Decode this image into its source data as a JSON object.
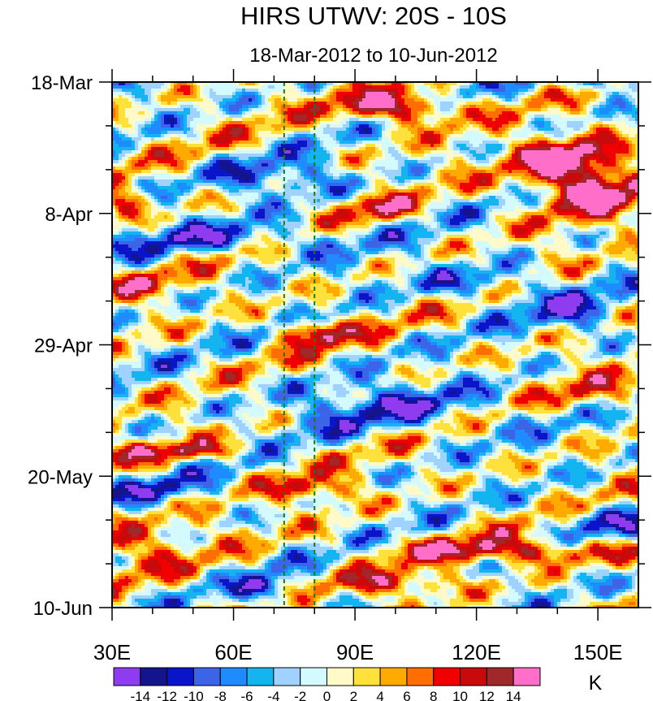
{
  "chart_data": {
    "type": "heatmap",
    "title": "HIRS UTWV: 20S - 10S",
    "subtitle": "18-Mar-2012 to 10-Jun-2012",
    "x_axis": {
      "range": [
        "30E",
        "160E"
      ],
      "ticks": [
        {
          "value": 30,
          "label": "30E"
        },
        {
          "value": 60,
          "label": "60E"
        },
        {
          "value": 90,
          "label": "90E"
        },
        {
          "value": 120,
          "label": "120E"
        },
        {
          "value": 150,
          "label": "150E"
        }
      ]
    },
    "y_axis": {
      "range": [
        "18-Mar-2012",
        "10-Jun-2012"
      ],
      "ticks": [
        {
          "value": "2012-03-18",
          "label": "18-Mar"
        },
        {
          "value": "2012-04-08",
          "label": "8-Apr"
        },
        {
          "value": "2012-04-29",
          "label": "29-Apr"
        },
        {
          "value": "2012-05-20",
          "label": "20-May"
        },
        {
          "value": "2012-06-10",
          "label": "10-Jun"
        }
      ]
    },
    "reference_lines_longitude": [
      72.5,
      80
    ],
    "colorbar": {
      "unit": "K",
      "levels": [
        -14,
        -12,
        -10,
        -8,
        -6,
        -4,
        -2,
        0,
        2,
        4,
        6,
        8,
        10,
        12,
        14
      ],
      "level_labels": [
        "-14",
        "-12",
        "-10",
        "-8",
        "-6",
        "-4",
        "-2",
        "0",
        "2",
        "4",
        "6",
        "8",
        "10",
        "12",
        "14"
      ],
      "colors": [
        "#8f3cf0",
        "#14148c",
        "#0a14c8",
        "#3c64e6",
        "#1e8cff",
        "#14b4f0",
        "#a0d2ff",
        "#d2faff",
        "#fffac8",
        "#ffe13c",
        "#ffaa00",
        "#ff6e00",
        "#f00000",
        "#c80a0a",
        "#a02828",
        "#ff6ec8"
      ]
    },
    "features": [
      {
        "lon": 101,
        "date": "2012-03-22",
        "amp": 17,
        "rlon": 14,
        "rdays": 2.5,
        "drift_deg_per_day": 0
      },
      {
        "lon": 147,
        "date": "2012-04-03",
        "amp": 17,
        "rlon": 15,
        "rdays": 5,
        "drift_deg_per_day": 0
      },
      {
        "lon": 142,
        "date": "2012-03-30",
        "amp": 10,
        "rlon": 12,
        "rdays": 3,
        "drift_deg_per_day": 0
      },
      {
        "lon": 153,
        "date": "2012-03-18",
        "amp": -9,
        "rlon": 14,
        "rdays": 1.5,
        "drift_deg_per_day": 0
      },
      {
        "lon": 33,
        "date": "2012-04-06",
        "amp": 11,
        "rlon": 5,
        "rdays": 2,
        "drift_deg_per_day": 0
      },
      {
        "lon": 96,
        "date": "2012-04-07",
        "amp": 9,
        "rlon": 8,
        "rdays": 2,
        "drift_deg_per_day": 0
      },
      {
        "lon": 80,
        "date": "2012-04-27",
        "amp": 13,
        "rlon": 8,
        "rdays": 2,
        "drift_deg_per_day": 0
      },
      {
        "lon": 80,
        "date": "2012-05-22",
        "amp": 10,
        "rlon": 10,
        "rdays": 2,
        "drift_deg_per_day": 0
      },
      {
        "lon": 130,
        "date": "2012-06-01",
        "amp": 12,
        "rlon": 30,
        "rdays": 2,
        "drift_deg_per_day": 2.2
      },
      {
        "lon": 100,
        "date": "2012-06-06",
        "amp": 9,
        "rlon": 15,
        "rdays": 2,
        "drift_deg_per_day": 0
      },
      {
        "lon": 60,
        "date": "2012-04-12",
        "amp": -9,
        "rlon": 30,
        "rdays": 2.5,
        "drift_deg_per_day": 0
      },
      {
        "lon": 70,
        "date": "2012-04-02",
        "amp": -8,
        "rlon": 18,
        "rdays": 3,
        "drift_deg_per_day": 0
      },
      {
        "lon": 100,
        "date": "2012-05-09",
        "amp": -9,
        "rlon": 30,
        "rdays": 4,
        "drift_deg_per_day": 0
      },
      {
        "lon": 145,
        "date": "2012-04-24",
        "amp": -9,
        "rlon": 12,
        "rdays": 3,
        "drift_deg_per_day": 0
      },
      {
        "lon": 120,
        "date": "2012-04-19",
        "amp": -8,
        "rlon": 18,
        "rdays": 3,
        "drift_deg_per_day": 0
      },
      {
        "lon": 68,
        "date": "2012-06-07",
        "amp": -11,
        "rlon": 6,
        "rdays": 2,
        "drift_deg_per_day": 0
      },
      {
        "lon": 40,
        "date": "2012-05-22",
        "amp": -7,
        "rlon": 15,
        "rdays": 2,
        "drift_deg_per_day": 0
      },
      {
        "lon": 150,
        "date": "2012-05-27",
        "amp": -9,
        "rlon": 12,
        "rdays": 2.5,
        "drift_deg_per_day": 0
      },
      {
        "lon": 35,
        "date": "2012-05-31",
        "amp": 7,
        "rlon": 15,
        "rdays": 4,
        "drift_deg_per_day": 0
      },
      {
        "lon": 45,
        "date": "2012-05-16",
        "amp": 9,
        "rlon": 20,
        "rdays": 1.5,
        "drift_deg_per_day": 0
      },
      {
        "lon": 37,
        "date": "2012-04-19",
        "amp": 8,
        "rlon": 8,
        "rdays": 2,
        "drift_deg_per_day": 0
      },
      {
        "lon": 150,
        "date": "2012-05-07",
        "amp": 7,
        "rlon": 12,
        "rdays": 3,
        "drift_deg_per_day": 0
      }
    ]
  }
}
